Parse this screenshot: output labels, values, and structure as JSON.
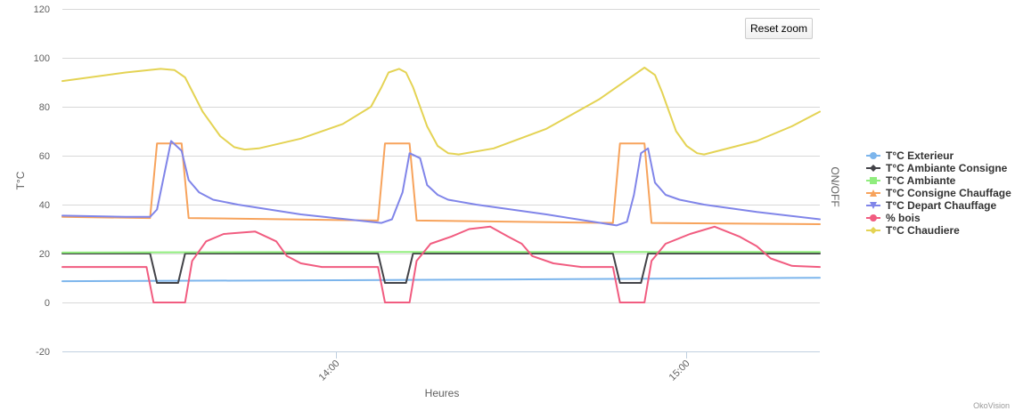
{
  "chart_data": {
    "type": "line",
    "xlabel": "Heures",
    "ylabel": "T°C",
    "y2label": "ON/OFF",
    "ylim": [
      -20,
      120
    ],
    "yticks": [
      -20,
      0,
      20,
      40,
      60,
      80,
      100,
      120
    ],
    "xlim": [
      13.22,
      15.38
    ],
    "xticks": [
      {
        "value": 14.0,
        "label": "14:00"
      },
      {
        "value": 15.0,
        "label": "15:00"
      }
    ],
    "grid": true,
    "legend_position": "right",
    "series": [
      {
        "name": "T°C Exterieur",
        "color": "#7cb5ec",
        "marker": "circle",
        "points": [
          [
            13.22,
            8.7
          ],
          [
            14.0,
            9.1
          ],
          [
            14.5,
            9.4
          ],
          [
            15.0,
            9.8
          ],
          [
            15.38,
            10.1
          ]
        ]
      },
      {
        "name": "T°C Ambiante Consigne",
        "color": "#434348",
        "marker": "diamond",
        "points": [
          [
            13.22,
            20
          ],
          [
            13.47,
            20
          ],
          [
            13.49,
            8
          ],
          [
            13.55,
            8
          ],
          [
            13.57,
            20
          ],
          [
            14.12,
            20
          ],
          [
            14.14,
            8
          ],
          [
            14.2,
            8
          ],
          [
            14.22,
            20
          ],
          [
            14.79,
            20
          ],
          [
            14.81,
            8
          ],
          [
            14.87,
            8
          ],
          [
            14.89,
            20
          ],
          [
            15.38,
            20
          ]
        ]
      },
      {
        "name": "T°C Ambiante",
        "color": "#90ed7d",
        "marker": "square",
        "points": [
          [
            13.22,
            20.4
          ],
          [
            14.0,
            20.6
          ],
          [
            14.5,
            20.6
          ],
          [
            15.0,
            20.6
          ],
          [
            15.38,
            20.6
          ]
        ]
      },
      {
        "name": "T°C Consigne Chauffage",
        "color": "#f7a35c",
        "marker": "triangle",
        "points": [
          [
            13.22,
            35
          ],
          [
            13.47,
            34.5
          ],
          [
            13.49,
            65
          ],
          [
            13.56,
            65
          ],
          [
            13.58,
            34.5
          ],
          [
            14.12,
            33.5
          ],
          [
            14.14,
            65
          ],
          [
            14.21,
            65
          ],
          [
            14.23,
            33.5
          ],
          [
            14.79,
            32.5
          ],
          [
            14.81,
            65
          ],
          [
            14.88,
            65
          ],
          [
            14.9,
            32.5
          ],
          [
            15.38,
            32
          ]
        ]
      },
      {
        "name": "T°C Depart Chauffage",
        "color": "#8085e9",
        "marker": "triangle-down",
        "points": [
          [
            13.22,
            35.5
          ],
          [
            13.4,
            35
          ],
          [
            13.47,
            35
          ],
          [
            13.49,
            38
          ],
          [
            13.53,
            66
          ],
          [
            13.56,
            62
          ],
          [
            13.58,
            50
          ],
          [
            13.61,
            45
          ],
          [
            13.65,
            42
          ],
          [
            13.72,
            40
          ],
          [
            13.9,
            36
          ],
          [
            14.13,
            32.5
          ],
          [
            14.16,
            34
          ],
          [
            14.19,
            45
          ],
          [
            14.21,
            61
          ],
          [
            14.24,
            59
          ],
          [
            14.26,
            48
          ],
          [
            14.29,
            44
          ],
          [
            14.32,
            42
          ],
          [
            14.4,
            40
          ],
          [
            14.6,
            36
          ],
          [
            14.8,
            31.5
          ],
          [
            14.83,
            33
          ],
          [
            14.85,
            44
          ],
          [
            14.87,
            61
          ],
          [
            14.89,
            63
          ],
          [
            14.91,
            49
          ],
          [
            14.94,
            44
          ],
          [
            14.98,
            42
          ],
          [
            15.05,
            40
          ],
          [
            15.2,
            37
          ],
          [
            15.38,
            34
          ]
        ]
      },
      {
        "name": "% bois",
        "color": "#f15c80",
        "marker": "circle",
        "points": [
          [
            13.22,
            14.5
          ],
          [
            13.46,
            14.5
          ],
          [
            13.48,
            0
          ],
          [
            13.57,
            0
          ],
          [
            13.59,
            17
          ],
          [
            13.63,
            25
          ],
          [
            13.68,
            28
          ],
          [
            13.77,
            29
          ],
          [
            13.83,
            25
          ],
          [
            13.86,
            19
          ],
          [
            13.9,
            16
          ],
          [
            13.96,
            14.5
          ],
          [
            14.12,
            14.5
          ],
          [
            14.14,
            0
          ],
          [
            14.21,
            0
          ],
          [
            14.23,
            17
          ],
          [
            14.27,
            24
          ],
          [
            14.33,
            27
          ],
          [
            14.38,
            30
          ],
          [
            14.44,
            31
          ],
          [
            14.49,
            27
          ],
          [
            14.53,
            24
          ],
          [
            14.56,
            19
          ],
          [
            14.62,
            16
          ],
          [
            14.7,
            14.5
          ],
          [
            14.79,
            14.5
          ],
          [
            14.81,
            0
          ],
          [
            14.88,
            0
          ],
          [
            14.9,
            17
          ],
          [
            14.94,
            24
          ],
          [
            15.01,
            28
          ],
          [
            15.08,
            31
          ],
          [
            15.15,
            27
          ],
          [
            15.2,
            23
          ],
          [
            15.24,
            18
          ],
          [
            15.3,
            15
          ],
          [
            15.38,
            14.5
          ]
        ]
      },
      {
        "name": "T°C Chaudiere",
        "color": "#e4d354",
        "marker": "diamond",
        "points": [
          [
            13.22,
            90.5
          ],
          [
            13.4,
            94
          ],
          [
            13.5,
            95.5
          ],
          [
            13.54,
            95
          ],
          [
            13.57,
            92
          ],
          [
            13.62,
            78
          ],
          [
            13.67,
            68
          ],
          [
            13.71,
            63.5
          ],
          [
            13.74,
            62.5
          ],
          [
            13.78,
            63
          ],
          [
            13.9,
            67
          ],
          [
            14.02,
            73
          ],
          [
            14.1,
            80
          ],
          [
            14.13,
            88
          ],
          [
            14.15,
            94
          ],
          [
            14.18,
            95.5
          ],
          [
            14.2,
            94
          ],
          [
            14.22,
            88
          ],
          [
            14.26,
            72
          ],
          [
            14.29,
            64
          ],
          [
            14.32,
            61
          ],
          [
            14.35,
            60.5
          ],
          [
            14.45,
            63
          ],
          [
            14.6,
            71
          ],
          [
            14.75,
            83
          ],
          [
            14.85,
            93
          ],
          [
            14.88,
            96
          ],
          [
            14.91,
            93
          ],
          [
            14.93,
            86
          ],
          [
            14.97,
            70
          ],
          [
            15.0,
            64
          ],
          [
            15.03,
            61
          ],
          [
            15.05,
            60.5
          ],
          [
            15.2,
            66
          ],
          [
            15.3,
            72
          ],
          [
            15.38,
            78
          ]
        ]
      }
    ]
  },
  "controls": {
    "reset_zoom_label": "Reset zoom"
  },
  "credit": "OkoVision"
}
